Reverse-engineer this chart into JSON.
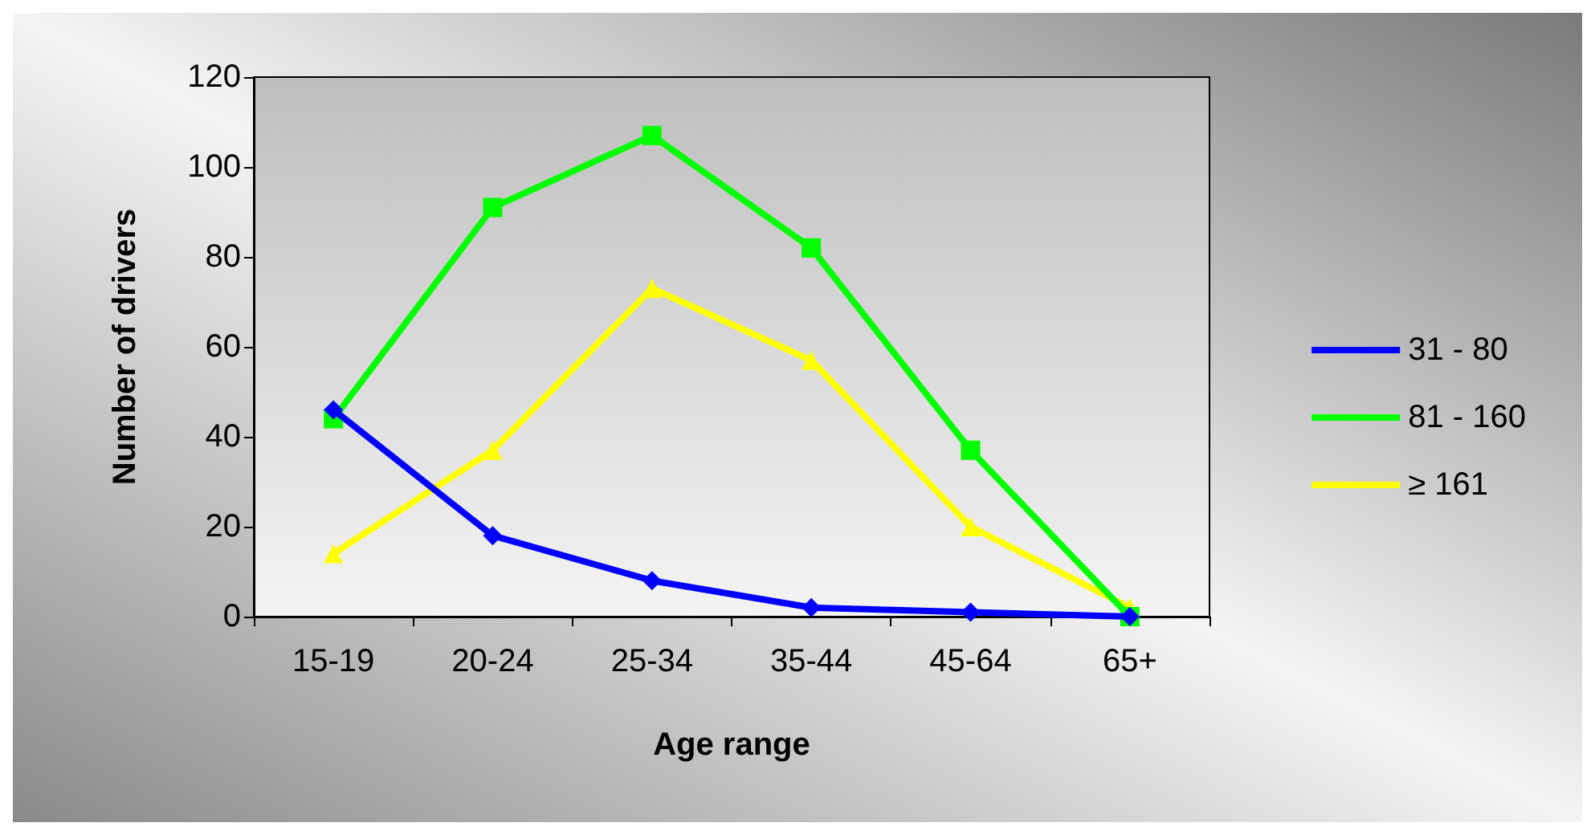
{
  "chart_data": {
    "type": "line",
    "xlabel": "Age range",
    "ylabel": "Number of drivers",
    "categories": [
      "15-19",
      "20-24",
      "25-34",
      "35-44",
      "45-64",
      "65+"
    ],
    "series": [
      {
        "name": "31 - 80",
        "color": "#0000ff",
        "marker": "diamond",
        "values": [
          46,
          18,
          8,
          2,
          1,
          0
        ]
      },
      {
        "name": "81 - 160",
        "color": "#00ff00",
        "marker": "square",
        "values": [
          44,
          91,
          107,
          82,
          37,
          0
        ]
      },
      {
        "name": "≥ 161",
        "color": "#ffff00",
        "marker": "triangle",
        "values": [
          14,
          37,
          73,
          57,
          20,
          2
        ]
      }
    ],
    "ylim": [
      0,
      120
    ],
    "yticks": [
      0,
      20,
      40,
      60,
      80,
      100,
      120
    ],
    "grid": false,
    "legend": "right",
    "line_style": "solid"
  }
}
